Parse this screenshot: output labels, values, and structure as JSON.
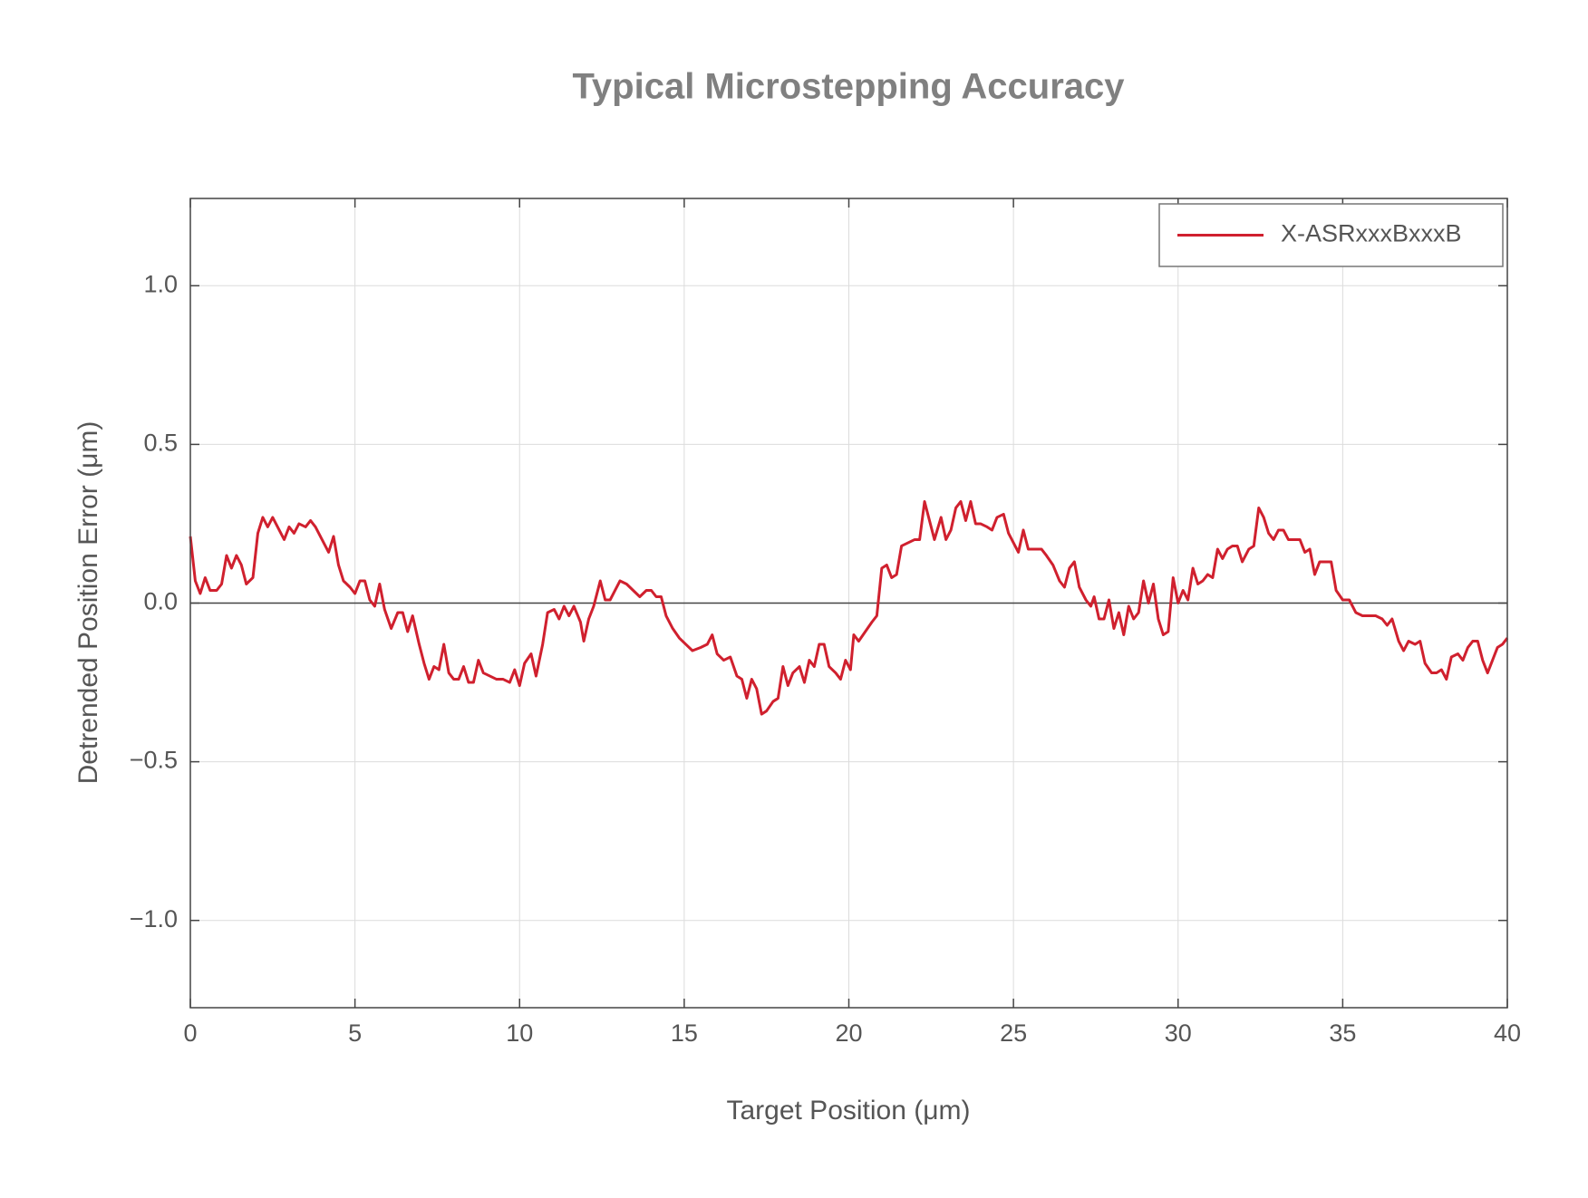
{
  "chart_data": {
    "type": "line",
    "title": "Typical Microstepping Accuracy",
    "xlabel": "Target Position (μm)",
    "ylabel": "Detrended Position Error (μm)",
    "x": [
      0,
      0.15,
      0.3,
      0.45,
      0.6,
      0.8,
      0.95,
      1.1,
      1.25,
      1.4,
      1.55,
      1.7,
      1.9,
      2.05,
      2.2,
      2.35,
      2.5,
      2.65,
      2.85,
      3.0,
      3.15,
      3.3,
      3.5,
      3.65,
      3.8,
      4.0,
      4.2,
      4.35,
      4.5,
      4.65,
      4.85,
      5.0,
      5.15,
      5.3,
      5.45,
      5.6,
      5.75,
      5.9,
      6.1,
      6.3,
      6.45,
      6.6,
      6.75,
      6.95,
      7.1,
      7.25,
      7.4,
      7.55,
      7.7,
      7.85,
      8.0,
      8.15,
      8.3,
      8.45,
      8.6,
      8.75,
      8.9,
      9.1,
      9.3,
      9.5,
      9.7,
      9.85,
      10.0,
      10.15,
      10.35,
      10.5,
      10.7,
      10.85,
      11.05,
      11.2,
      11.35,
      11.5,
      11.65,
      11.85,
      11.95,
      12.1,
      12.25,
      12.45,
      12.6,
      12.75,
      12.9,
      13.05,
      13.25,
      13.45,
      13.65,
      13.85,
      14.0,
      14.15,
      14.3,
      14.45,
      14.65,
      14.85,
      15.05,
      15.25,
      15.5,
      15.7,
      15.85,
      16.0,
      16.2,
      16.4,
      16.6,
      16.75,
      16.9,
      17.05,
      17.2,
      17.35,
      17.5,
      17.7,
      17.85,
      18.0,
      18.15,
      18.3,
      18.5,
      18.65,
      18.8,
      18.95,
      19.1,
      19.25,
      19.4,
      19.6,
      19.75,
      19.9,
      20.05,
      20.15,
      20.3,
      20.5,
      20.7,
      20.85,
      21.0,
      21.15,
      21.3,
      21.45,
      21.6,
      21.8,
      22.0,
      22.15,
      22.3,
      22.45,
      22.6,
      22.8,
      22.95,
      23.1,
      23.25,
      23.4,
      23.55,
      23.7,
      23.85,
      24.0,
      24.2,
      24.35,
      24.5,
      24.7,
      24.85,
      25.0,
      25.15,
      25.3,
      25.45,
      25.65,
      25.85,
      26.0,
      26.2,
      26.4,
      26.55,
      26.7,
      26.85,
      27.0,
      27.2,
      27.35,
      27.45,
      27.6,
      27.75,
      27.9,
      28.05,
      28.2,
      28.35,
      28.5,
      28.65,
      28.8,
      28.95,
      29.1,
      29.25,
      29.4,
      29.55,
      29.7,
      29.85,
      30.0,
      30.15,
      30.3,
      30.45,
      30.6,
      30.75,
      30.9,
      31.05,
      31.2,
      31.35,
      31.5,
      31.65,
      31.8,
      31.95,
      32.15,
      32.3,
      32.45,
      32.6,
      32.75,
      32.9,
      33.05,
      33.2,
      33.35,
      33.55,
      33.7,
      33.85,
      34.0,
      34.15,
      34.3,
      34.45,
      34.65,
      34.8,
      35.0,
      35.2,
      35.4,
      35.6,
      35.8,
      36.0,
      36.2,
      36.35,
      36.5,
      36.7,
      36.85,
      37.0,
      37.2,
      37.35,
      37.5,
      37.7,
      37.85,
      38.0,
      38.15,
      38.3,
      38.5,
      38.65,
      38.8,
      38.95,
      39.1,
      39.25,
      39.4,
      39.55,
      39.7,
      39.85,
      40.0
    ],
    "series": [
      {
        "name": "X-ASRxxxBxxxB",
        "color": "#d0202e",
        "values": [
          0.21,
          0.07,
          0.03,
          0.08,
          0.04,
          0.04,
          0.06,
          0.15,
          0.11,
          0.15,
          0.12,
          0.06,
          0.08,
          0.22,
          0.27,
          0.24,
          0.27,
          0.24,
          0.2,
          0.24,
          0.22,
          0.25,
          0.24,
          0.26,
          0.24,
          0.2,
          0.16,
          0.21,
          0.12,
          0.07,
          0.05,
          0.03,
          0.07,
          0.07,
          0.01,
          -0.01,
          0.06,
          -0.02,
          -0.08,
          -0.03,
          -0.03,
          -0.09,
          -0.04,
          -0.13,
          -0.19,
          -0.24,
          -0.2,
          -0.21,
          -0.13,
          -0.22,
          -0.24,
          -0.24,
          -0.2,
          -0.25,
          -0.25,
          -0.18,
          -0.22,
          -0.23,
          -0.24,
          -0.24,
          -0.25,
          -0.21,
          -0.26,
          -0.19,
          -0.16,
          -0.23,
          -0.13,
          -0.03,
          -0.02,
          -0.05,
          -0.01,
          -0.04,
          -0.01,
          -0.06,
          -0.12,
          -0.05,
          -0.01,
          0.07,
          0.01,
          0.01,
          0.04,
          0.07,
          0.06,
          0.04,
          0.02,
          0.04,
          0.04,
          0.02,
          0.02,
          -0.04,
          -0.08,
          -0.11,
          -0.13,
          -0.15,
          -0.14,
          -0.13,
          -0.1,
          -0.16,
          -0.18,
          -0.17,
          -0.23,
          -0.24,
          -0.3,
          -0.24,
          -0.27,
          -0.35,
          -0.34,
          -0.31,
          -0.3,
          -0.2,
          -0.26,
          -0.22,
          -0.2,
          -0.25,
          -0.18,
          -0.2,
          -0.13,
          -0.13,
          -0.2,
          -0.22,
          -0.24,
          -0.18,
          -0.21,
          -0.1,
          -0.12,
          -0.09,
          -0.06,
          -0.04,
          0.11,
          0.12,
          0.08,
          0.09,
          0.18,
          0.19,
          0.2,
          0.2,
          0.32,
          0.26,
          0.2,
          0.27,
          0.2,
          0.23,
          0.3,
          0.32,
          0.26,
          0.32,
          0.25,
          0.25,
          0.24,
          0.23,
          0.27,
          0.28,
          0.22,
          0.19,
          0.16,
          0.23,
          0.17,
          0.17,
          0.17,
          0.15,
          0.12,
          0.07,
          0.05,
          0.11,
          0.13,
          0.05,
          0.01,
          -0.01,
          0.02,
          -0.05,
          -0.05,
          0.01,
          -0.08,
          -0.03,
          -0.1,
          -0.01,
          -0.05,
          -0.03,
          0.07,
          0.0,
          0.06,
          -0.05,
          -0.1,
          -0.09,
          0.08,
          0.0,
          0.04,
          0.01,
          0.11,
          0.06,
          0.07,
          0.09,
          0.08,
          0.17,
          0.14,
          0.17,
          0.18,
          0.18,
          0.13,
          0.17,
          0.18,
          0.3,
          0.27,
          0.22,
          0.2,
          0.23,
          0.23,
          0.2,
          0.2,
          0.2,
          0.16,
          0.17,
          0.09,
          0.13,
          0.13,
          0.13,
          0.04,
          0.01,
          0.01,
          -0.03,
          -0.04,
          -0.04,
          -0.04,
          -0.05,
          -0.07,
          -0.05,
          -0.12,
          -0.15,
          -0.12,
          -0.13,
          -0.12,
          -0.19,
          -0.22,
          -0.22,
          -0.21,
          -0.24,
          -0.17,
          -0.16,
          -0.18,
          -0.14,
          -0.12,
          -0.12,
          -0.18,
          -0.22,
          -0.18,
          -0.14,
          -0.13,
          -0.11
        ]
      }
    ],
    "xlim": [
      0,
      40
    ],
    "xticks": [
      0,
      5,
      10,
      15,
      20,
      25,
      30,
      35,
      40
    ],
    "ylim": [
      -1.275,
      1.275
    ],
    "yticks": [
      {
        "value": -1.0,
        "label": "−1.0"
      },
      {
        "value": -0.5,
        "label": "−0.5"
      },
      {
        "value": 0.0,
        "label": "0.0"
      },
      {
        "value": 0.5,
        "label": "0.5"
      },
      {
        "value": 1.0,
        "label": "1.0"
      }
    ],
    "hline": 0,
    "grid": true,
    "legend": "upper right"
  }
}
